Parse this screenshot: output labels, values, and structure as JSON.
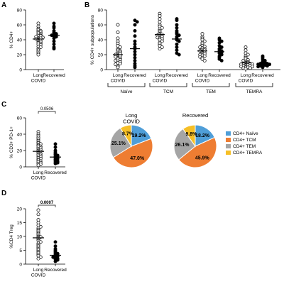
{
  "panels": {
    "A": "A",
    "B": "B",
    "C": "C",
    "D": "D"
  },
  "colors": {
    "naive": "#4f9ed8",
    "tcm": "#ee7d32",
    "tem": "#a5a5a5",
    "temra": "#f6bf26",
    "line": "#000000"
  },
  "chart_data": [
    {
      "panel": "A",
      "type": "scatter",
      "ylabel": "% CD4+",
      "ylim": [
        0,
        80
      ],
      "yticks": [
        "0",
        "20",
        "40",
        "60",
        "80"
      ],
      "categories": [
        "Long\nCOVID",
        "Recovered"
      ],
      "series": [
        {
          "group": "Long COVID",
          "marker": "open",
          "mean": 41,
          "values": [
            62,
            58,
            55,
            53,
            52,
            51,
            50,
            49,
            48,
            47,
            46,
            45,
            45,
            44,
            43,
            42,
            42,
            41,
            40,
            39,
            38,
            37,
            36,
            35,
            34,
            33,
            31,
            30,
            28,
            26,
            24,
            22,
            20
          ]
        },
        {
          "group": "Recovered",
          "marker": "filled",
          "mean": 46,
          "values": [
            62,
            58,
            56,
            52,
            50,
            49,
            48,
            47,
            47,
            46,
            45,
            44,
            42,
            38,
            34,
            30,
            28
          ]
        }
      ]
    },
    {
      "panel": "B",
      "type": "scatter",
      "ylabel": "% CD4+ subpopulations",
      "ylim": [
        0,
        80
      ],
      "yticks": [
        "0",
        "20",
        "40",
        "60",
        "80"
      ],
      "groups": [
        "Naïve",
        "TCM",
        "TEM",
        "TEMRA"
      ],
      "categories": [
        "Long\nCOVID",
        "Recovered"
      ],
      "series": [
        {
          "group": "Naïve",
          "sub": "Long COVID",
          "marker": "open",
          "mean": 20,
          "values": [
            60,
            50,
            42,
            38,
            35,
            32,
            30,
            28,
            26,
            25,
            24,
            23,
            22,
            21,
            20,
            19,
            18,
            17,
            16,
            15,
            14,
            13,
            12,
            11,
            10,
            9,
            8,
            7,
            5,
            3
          ]
        },
        {
          "group": "Naïve",
          "sub": "Recovered",
          "marker": "filled",
          "mean": 28,
          "values": [
            66,
            64,
            60,
            52,
            45,
            38,
            34,
            30,
            28,
            24,
            20,
            16,
            12,
            8,
            5,
            3
          ]
        },
        {
          "group": "TCM",
          "sub": "Long COVID",
          "marker": "open",
          "mean": 47,
          "values": [
            75,
            72,
            68,
            64,
            60,
            58,
            56,
            54,
            52,
            50,
            48,
            47,
            46,
            45,
            44,
            43,
            42,
            41,
            40,
            38,
            36,
            34,
            32,
            30,
            28
          ]
        },
        {
          "group": "TCM",
          "sub": "Recovered",
          "marker": "filled",
          "mean": 41,
          "values": [
            68,
            66,
            60,
            56,
            52,
            50,
            48,
            46,
            44,
            42,
            40,
            38,
            34,
            30,
            26,
            22,
            20
          ]
        },
        {
          "group": "TEM",
          "sub": "Long COVID",
          "marker": "open",
          "mean": 25,
          "values": [
            48,
            44,
            42,
            40,
            38,
            36,
            34,
            32,
            31,
            30,
            29,
            28,
            27,
            26,
            25,
            24,
            23,
            22,
            21,
            20,
            19,
            18,
            17,
            16,
            14,
            12
          ]
        },
        {
          "group": "TEM",
          "sub": "Recovered",
          "marker": "filled",
          "mean": 24,
          "values": [
            42,
            40,
            38,
            36,
            32,
            30,
            28,
            26,
            25,
            24,
            23,
            22,
            20,
            18,
            16,
            14,
            12
          ]
        },
        {
          "group": "TEMRA",
          "sub": "Long COVID",
          "marker": "open",
          "mean": 9,
          "values": [
            30,
            26,
            22,
            20,
            18,
            16,
            14,
            13,
            12,
            11,
            10,
            9,
            9,
            8,
            8,
            7,
            7,
            6,
            6,
            5,
            5,
            4,
            4,
            3,
            3,
            2,
            2,
            1
          ]
        },
        {
          "group": "TEMRA",
          "sub": "Recovered",
          "marker": "filled",
          "mean": 8,
          "values": [
            18,
            16,
            14,
            12,
            11,
            10,
            9,
            9,
            8,
            8,
            7,
            7,
            6,
            6,
            5,
            5,
            4,
            3
          ]
        }
      ]
    },
    {
      "panel": "C",
      "type": "scatter",
      "ylabel": "% CD3+ PD-1+",
      "ylim": [
        0,
        60
      ],
      "yticks": [
        "0",
        "20",
        "40",
        "60"
      ],
      "categories": [
        "Long\nCOVID",
        "Recovered"
      ],
      "pvalue": "0.0506",
      "series": [
        {
          "group": "Long COVID",
          "marker": "open",
          "mean": 19,
          "values": [
            43,
            40,
            38,
            36,
            34,
            32,
            30,
            29,
            28,
            27,
            26,
            25,
            24,
            23,
            22,
            21,
            20,
            19,
            18,
            17,
            16,
            15,
            14,
            13,
            12,
            11,
            10,
            9,
            8,
            7,
            6,
            5,
            4,
            3,
            2
          ]
        },
        {
          "group": "Recovered",
          "marker": "filled",
          "mean": 12,
          "values": [
            28,
            24,
            20,
            18,
            16,
            15,
            14,
            13,
            12,
            11,
            10,
            9,
            8,
            7,
            6,
            5,
            4
          ]
        }
      ]
    },
    {
      "panel": "C",
      "type": "pie",
      "title": "Long\nCOVID",
      "slices": [
        {
          "label": "CD4+ Naïve",
          "value": 19.2,
          "text": "19.2%"
        },
        {
          "label": "CD4+ TCM",
          "value": 47.0,
          "text": "47.0%"
        },
        {
          "label": "CD4+ TEM",
          "value": 25.1,
          "text": "25.1%"
        },
        {
          "label": "CD4+ TEMRA",
          "value": 8.7,
          "text": "8.7%"
        }
      ]
    },
    {
      "panel": "C",
      "type": "pie",
      "title": "Recovered",
      "slices": [
        {
          "label": "CD4+ Naïve",
          "value": 18.2,
          "text": "18.2%"
        },
        {
          "label": "CD4+ TCM",
          "value": 45.9,
          "text": "45.9%"
        },
        {
          "label": "CD4+ TEM",
          "value": 26.1,
          "text": "26.1%"
        },
        {
          "label": "CD4+ TEMRA",
          "value": 9.8,
          "text": "9.8%"
        }
      ],
      "legend": [
        "CD4+ Naïve",
        "CD4+ TCM",
        "CD4+ TEM",
        "CD4+ TEMRA"
      ]
    },
    {
      "panel": "D",
      "type": "scatter",
      "ylabel": "%CD4 Treg",
      "ylim": [
        0,
        20
      ],
      "yticks": [
        "0",
        "5",
        "10",
        "15",
        "20"
      ],
      "categories": [
        "Long\nCOVID",
        "Recovered"
      ],
      "pvalue": "0.0007",
      "series": [
        {
          "group": "Long COVID",
          "marker": "open",
          "mean": 9.5,
          "values": [
            19.5,
            18,
            16,
            15,
            14,
            13.5,
            13,
            12.5,
            12,
            11.5,
            11,
            10.5,
            10,
            9.8,
            9.5,
            9,
            8.5,
            8,
            7.5,
            7,
            6.5,
            6,
            5.5,
            5,
            4.5,
            4,
            3.5,
            3,
            2.5,
            2
          ]
        },
        {
          "group": "Recovered",
          "marker": "filled",
          "mean": 3.2,
          "values": [
            8,
            6.5,
            5.5,
            5,
            4.5,
            4,
            3.8,
            3.5,
            3.2,
            3,
            2.8,
            2.5,
            2.2,
            2,
            1.8,
            1.5,
            1
          ]
        }
      ]
    }
  ]
}
